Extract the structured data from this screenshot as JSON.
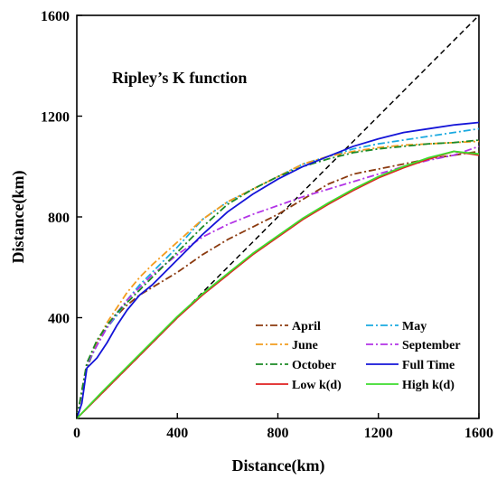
{
  "chart_data": {
    "type": "line",
    "title": "",
    "annotation": "Ripley’s K function",
    "xlabel": "Distance(km)",
    "ylabel": "Distance(km)",
    "xlim": [
      0,
      1600
    ],
    "ylim": [
      0,
      1600
    ],
    "xticks": [
      "0",
      "400",
      "800",
      "1200",
      "1600"
    ],
    "yticks": [
      "400",
      "800",
      "1200",
      "1600"
    ],
    "grid": false,
    "legend_position": "bottom-right",
    "reference_line": {
      "x": [
        0,
        1600
      ],
      "y": [
        0,
        1600
      ],
      "color": "#000000",
      "dash": "dashed"
    },
    "series": [
      {
        "name": "April",
        "color": "#8B3A0F",
        "dash": "dashdot",
        "x": [
          0,
          40,
          80,
          120,
          160,
          200,
          250,
          300,
          400,
          500,
          600,
          700,
          800,
          900,
          1000,
          1100,
          1200,
          1300,
          1400,
          1500,
          1600
        ],
        "y": [
          0,
          200,
          300,
          360,
          410,
          450,
          490,
          520,
          580,
          650,
          710,
          760,
          810,
          870,
          930,
          970,
          990,
          1010,
          1030,
          1045,
          1060
        ]
      },
      {
        "name": "May",
        "color": "#1AA9E0",
        "dash": "dashdot",
        "x": [
          0,
          40,
          80,
          120,
          160,
          200,
          250,
          300,
          400,
          500,
          600,
          700,
          800,
          900,
          1000,
          1100,
          1200,
          1300,
          1400,
          1500,
          1600
        ],
        "y": [
          0,
          210,
          290,
          360,
          410,
          470,
          530,
          580,
          680,
          790,
          860,
          910,
          960,
          1010,
          1040,
          1070,
          1090,
          1105,
          1120,
          1135,
          1150
        ]
      },
      {
        "name": "June",
        "color": "#F39C1E",
        "dash": "dashdot",
        "x": [
          0,
          40,
          80,
          120,
          160,
          200,
          250,
          300,
          400,
          500,
          600,
          700,
          800,
          900,
          1000,
          1100,
          1200,
          1300,
          1400,
          1500,
          1600
        ],
        "y": [
          0,
          220,
          300,
          380,
          440,
          500,
          560,
          610,
          700,
          790,
          860,
          910,
          960,
          1010,
          1040,
          1060,
          1075,
          1085,
          1090,
          1095,
          1100
        ]
      },
      {
        "name": "September",
        "color": "#B233E6",
        "dash": "dashdot",
        "x": [
          0,
          40,
          80,
          120,
          160,
          200,
          250,
          300,
          400,
          500,
          600,
          700,
          800,
          900,
          1000,
          1100,
          1200,
          1300,
          1400,
          1500,
          1600
        ],
        "y": [
          0,
          215,
          290,
          360,
          420,
          470,
          520,
          570,
          650,
          720,
          770,
          810,
          845,
          880,
          910,
          940,
          970,
          1000,
          1025,
          1045,
          1080
        ]
      },
      {
        "name": "October",
        "color": "#1B8A26",
        "dash": "dashdot",
        "x": [
          0,
          40,
          80,
          120,
          160,
          200,
          250,
          300,
          400,
          500,
          600,
          700,
          800,
          900,
          1000,
          1100,
          1200,
          1300,
          1400,
          1500,
          1600
        ],
        "y": [
          0,
          220,
          310,
          370,
          420,
          460,
          510,
          560,
          660,
          760,
          850,
          910,
          960,
          1000,
          1030,
          1055,
          1070,
          1080,
          1090,
          1095,
          1105
        ]
      },
      {
        "name": "Full Time",
        "color": "#1414D8",
        "dash": "solid",
        "x": [
          0,
          20,
          40,
          80,
          120,
          160,
          200,
          250,
          300,
          400,
          500,
          600,
          700,
          800,
          900,
          1000,
          1100,
          1200,
          1300,
          1400,
          1500,
          1600
        ],
        "y": [
          0,
          60,
          200,
          240,
          300,
          370,
          430,
          490,
          530,
          630,
          730,
          820,
          890,
          950,
          1000,
          1040,
          1080,
          1110,
          1135,
          1150,
          1165,
          1175
        ]
      },
      {
        "name": "Low k(d)",
        "color": "#E02020",
        "dash": "solid",
        "x": [
          0,
          100,
          200,
          300,
          400,
          500,
          600,
          700,
          800,
          900,
          1000,
          1100,
          1200,
          1300,
          1400,
          1500,
          1600
        ],
        "y": [
          0,
          100,
          200,
          300,
          400,
          490,
          570,
          650,
          720,
          790,
          850,
          905,
          955,
          995,
          1030,
          1060,
          1045
        ]
      },
      {
        "name": "High k(d)",
        "color": "#3DDC2E",
        "dash": "solid",
        "x": [
          0,
          100,
          200,
          300,
          400,
          500,
          600,
          700,
          800,
          900,
          1000,
          1100,
          1200,
          1300,
          1400,
          1500,
          1600
        ],
        "y": [
          0,
          105,
          205,
          305,
          405,
          495,
          575,
          655,
          725,
          795,
          855,
          910,
          960,
          1000,
          1035,
          1060,
          1050
        ]
      }
    ]
  }
}
